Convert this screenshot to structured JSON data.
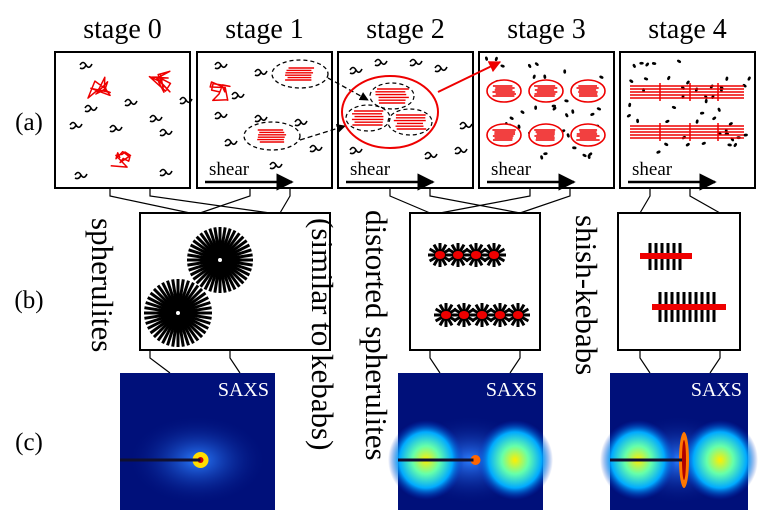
{
  "stages": [
    "stage 0",
    "stage 1",
    "stage 2",
    "stage 3",
    "stage 4"
  ],
  "rows": [
    "(a)",
    "(b)",
    "(c)"
  ],
  "shear": [
    "shear",
    "shear",
    "shear",
    "shear"
  ],
  "structures": {
    "spherulites": "spherulites",
    "distorted": [
      "distorted spherulites",
      "(similar to kebabs)"
    ],
    "shish_kebabs": "shish-kebabs"
  },
  "saxs": [
    "SAXS",
    "SAXS",
    "SAXS"
  ]
}
